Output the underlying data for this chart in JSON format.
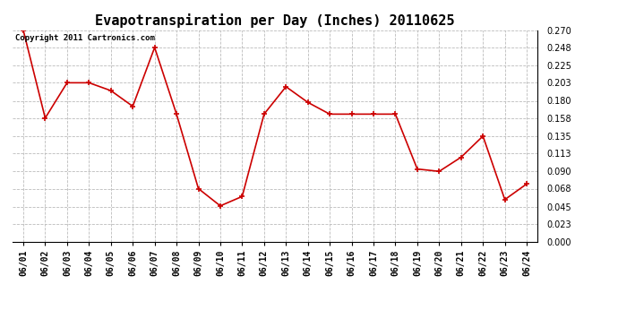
{
  "title": "Evapotranspiration per Day (Inches) 20110625",
  "copyright_text": "Copyright 2011 Cartronics.com",
  "dates": [
    "06/01",
    "06/02",
    "06/03",
    "06/04",
    "06/05",
    "06/06",
    "06/07",
    "06/08",
    "06/09",
    "06/10",
    "06/11",
    "06/12",
    "06/13",
    "06/14",
    "06/15",
    "06/16",
    "06/17",
    "06/18",
    "06/19",
    "06/20",
    "06/21",
    "06/22",
    "06/23",
    "06/24"
  ],
  "values": [
    0.27,
    0.158,
    0.203,
    0.203,
    0.193,
    0.173,
    0.248,
    0.163,
    0.068,
    0.046,
    0.058,
    0.163,
    0.198,
    0.178,
    0.163,
    0.163,
    0.163,
    0.163,
    0.093,
    0.09,
    0.108,
    0.135,
    0.054,
    0.074
  ],
  "line_color": "#cc0000",
  "marker": "+",
  "marker_size": 5,
  "marker_edge_width": 1.2,
  "bg_color": "#ffffff",
  "grid_color": "#bbbbbb",
  "ylim": [
    0.0,
    0.27
  ],
  "yticks": [
    0.0,
    0.023,
    0.045,
    0.068,
    0.09,
    0.113,
    0.135,
    0.158,
    0.18,
    0.203,
    0.225,
    0.248,
    0.27
  ],
  "title_fontsize": 11,
  "tick_fontsize": 7,
  "copyright_fontsize": 6.5,
  "line_width": 1.2
}
